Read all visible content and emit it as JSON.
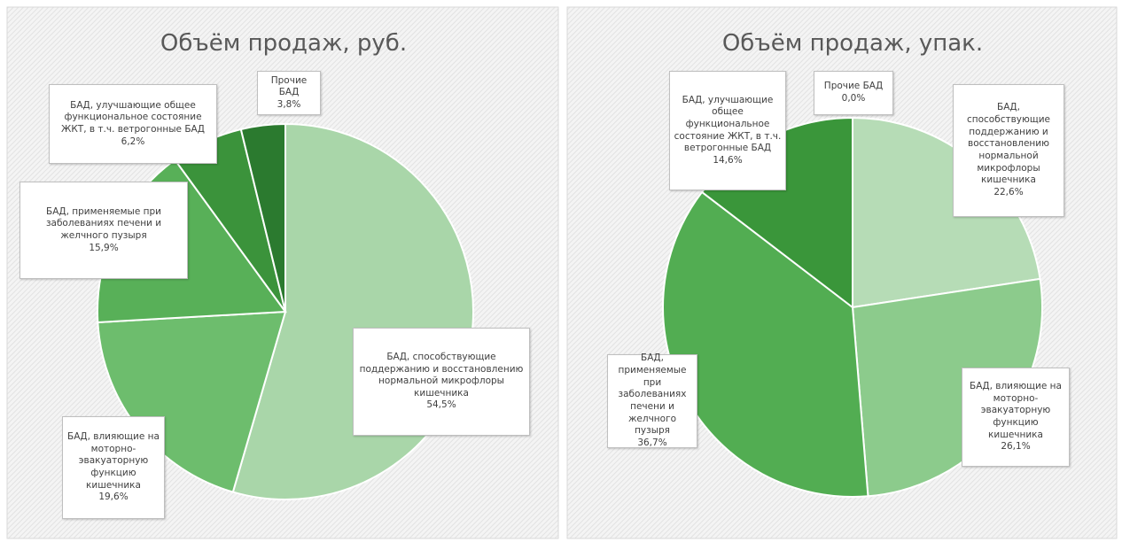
{
  "chart_data": [
    {
      "type": "pie",
      "title": "Объём продаж, руб.",
      "categories": [
        "БАД, способствующие поддержанию и восстановлению нормальной микрофлоры кишечника",
        "БАД, влияющие на моторно-эвакуаторную функцию кишечника",
        "БАД, применяемые при заболеваниях печени и желчного пузыря",
        "БАД, улучшающие общее функциональное состояние ЖКТ, в т.ч. ветрогонные БАД",
        "Прочие БАД"
      ],
      "values": [
        54.5,
        19.6,
        15.9,
        6.2,
        3.8
      ],
      "value_labels": [
        "54,5%",
        "19,6%",
        "15,9%",
        "6,2%",
        "3,8%"
      ],
      "colors": [
        "#a9d6a9",
        "#6dbd6d",
        "#58b058",
        "#3b933b",
        "#2b7a2f"
      ]
    },
    {
      "type": "pie",
      "title": "Объём продаж, упак.",
      "categories": [
        "БАД, способствующие поддержанию и восстановлению нормальной микрофлоры кишечника",
        "БАД, влияющие на моторно-эвакуаторную функцию кишечника",
        "БАД, применяемые при заболеваниях печени и желчного пузыря",
        "БАД, улучшающие общее функциональное состояние ЖКТ, в т.ч. ветрогонные БАД",
        "Прочие БАД"
      ],
      "values": [
        22.6,
        26.1,
        36.7,
        14.6,
        0.0
      ],
      "value_labels": [
        "22,6%",
        "26,1%",
        "36,7%",
        "14,6%",
        "0,0%"
      ],
      "colors": [
        "#b6dcb6",
        "#8ccb8c",
        "#52ad52",
        "#3a963a",
        "#2b7a2f"
      ]
    }
  ]
}
